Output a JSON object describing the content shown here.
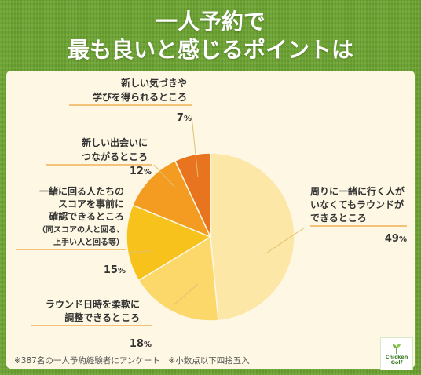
{
  "title": {
    "line1": "一人予約で",
    "line2": "最も良いと感じるポイントは"
  },
  "chart_data": {
    "type": "pie",
    "start": "top-clockwise",
    "slices": [
      {
        "lines": [
          "周りに一緒に行く人が",
          "いなくてもラウンドが",
          "できるところ"
        ],
        "value": 49,
        "display": "49",
        "color": "#fde7a6"
      },
      {
        "lines": [
          "ラウンド日時を柔軟に",
          "調整できるところ"
        ],
        "value": 18,
        "display": "18",
        "color": "#fcd86b"
      },
      {
        "lines": [
          "一緒に回る人たちの",
          "スコアを事前に",
          "確認できるところ",
          "（同スコアの人と回る、",
          "上手い人と回る等）"
        ],
        "value": 15,
        "display": "15",
        "color": "#f8c21c"
      },
      {
        "lines": [
          "新しい出会いに",
          "つながるところ"
        ],
        "value": 12,
        "display": "12",
        "color": "#f49c22"
      },
      {
        "lines": [
          "新しい気づきや",
          "学びを得られるところ"
        ],
        "value": 7,
        "display": "7",
        "color": "#e9741f"
      }
    ],
    "unit": "%"
  },
  "footnote": "※387名の一人予約経験者にアンケート　※小数点以下四捨五入",
  "logo": {
    "top": "Chicken",
    "bottom": "Golf"
  },
  "colors": {
    "background": "#6aa32f",
    "panel": "#fdf7e3",
    "underline": "#f0a23a",
    "leader": "#e0c070"
  }
}
